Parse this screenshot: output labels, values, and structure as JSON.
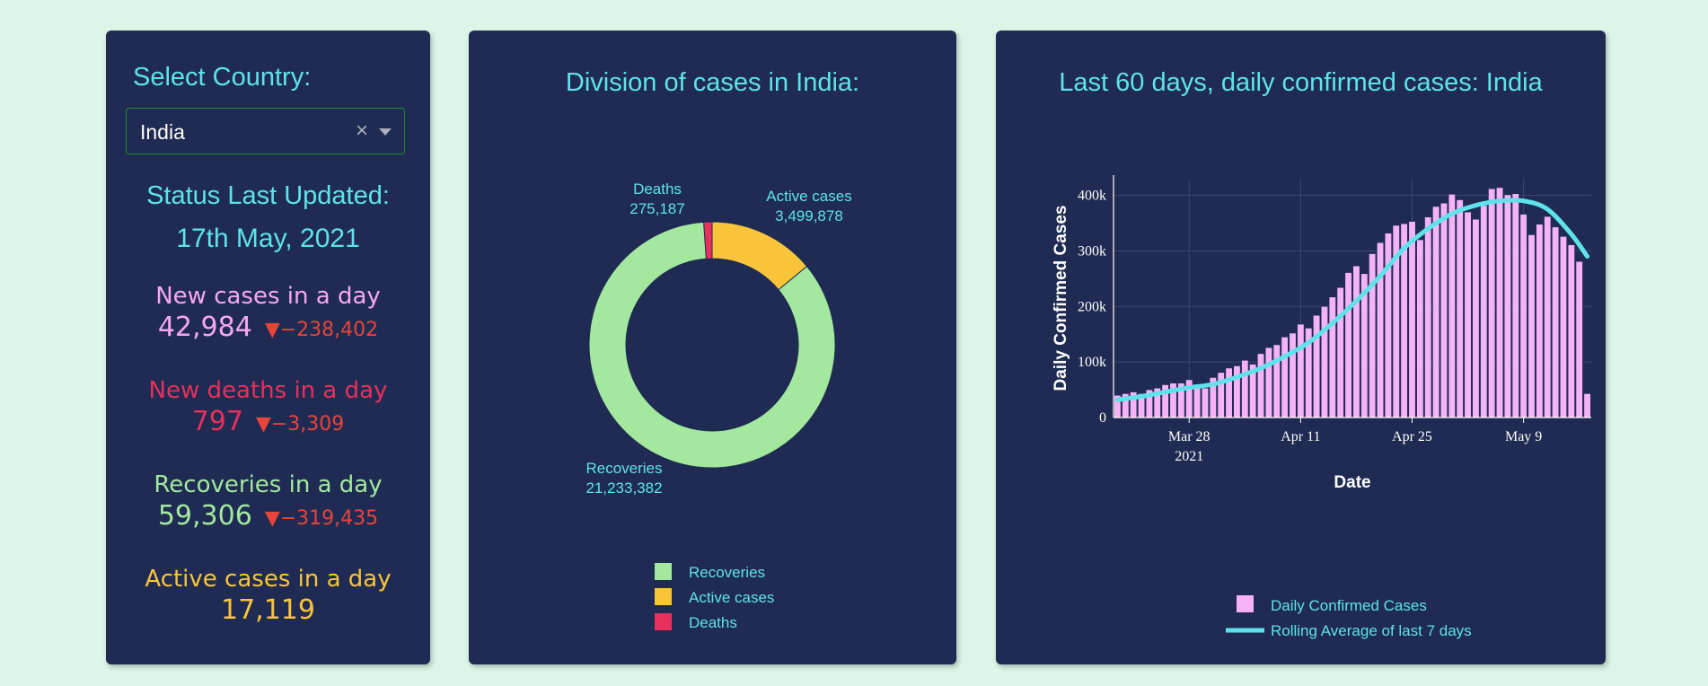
{
  "selector": {
    "label": "Select Country:",
    "value": "India",
    "clear_glyph": "×"
  },
  "status": {
    "label": "Status Last Updated:",
    "date": "17th May, 2021"
  },
  "stats": {
    "new_cases": {
      "label": "New cases in a day",
      "value": "42,984",
      "delta": "▼−238,402",
      "color": "#f5a8f0"
    },
    "new_deaths": {
      "label": "New deaths in a day",
      "value": "797",
      "delta": "▼−3,309",
      "color": "#e8305c"
    },
    "recoveries": {
      "label": "Recoveries in a day",
      "value": "59,306",
      "delta": "▼−319,435",
      "color": "#a3e89e"
    },
    "active": {
      "label": "Active cases in a day",
      "value": "17,119",
      "color": "#f8c53a"
    }
  },
  "colors": {
    "accent": "#5ee3ea",
    "card": "#1f2b52",
    "page": "#dcf5e8",
    "delta_down": "#e8443a"
  },
  "chart_data": [
    {
      "type": "pie",
      "title": "Division of cases in India:",
      "hole": true,
      "slices": [
        {
          "label": "Recoveries",
          "value": 21233382,
          "value_text": "21,233,382",
          "color": "#a3e89e"
        },
        {
          "label": "Active cases",
          "value": 3499878,
          "value_text": "3,499,878",
          "color": "#f8c53a"
        },
        {
          "label": "Deaths",
          "value": 275187,
          "value_text": "275,187",
          "color": "#e8305c"
        }
      ],
      "legend": [
        "Recoveries",
        "Active cases",
        "Deaths"
      ],
      "legend_position": "bottom-center"
    },
    {
      "type": "bar",
      "title": "Last 60 days, daily confirmed cases: India",
      "xlabel": "Date",
      "ylabel": "Daily Confirmed Cases",
      "ylim": [
        0,
        430000
      ],
      "y_ticks": [
        {
          "value": 0,
          "label": "0"
        },
        {
          "value": 100000,
          "label": "100k"
        },
        {
          "value": 200000,
          "label": "200k"
        },
        {
          "value": 300000,
          "label": "300k"
        },
        {
          "value": 400000,
          "label": "400k"
        }
      ],
      "x_ticks": [
        {
          "date": "2021-03-28",
          "label": "Mar 28",
          "sublabel": "2021"
        },
        {
          "date": "2021-04-11",
          "label": "Apr 11"
        },
        {
          "date": "2021-04-25",
          "label": "Apr 25"
        },
        {
          "date": "2021-05-09",
          "label": "May 9"
        }
      ],
      "grid": true,
      "legend_position": "bottom-center",
      "series": [
        {
          "name": "Daily Confirmed Cases",
          "kind": "bar",
          "color": "#f5b3f5",
          "x": [
            "2021-03-19",
            "2021-03-20",
            "2021-03-21",
            "2021-03-22",
            "2021-03-23",
            "2021-03-24",
            "2021-03-25",
            "2021-03-26",
            "2021-03-27",
            "2021-03-28",
            "2021-03-29",
            "2021-03-30",
            "2021-03-31",
            "2021-04-01",
            "2021-04-02",
            "2021-04-03",
            "2021-04-04",
            "2021-04-05",
            "2021-04-06",
            "2021-04-07",
            "2021-04-08",
            "2021-04-09",
            "2021-04-10",
            "2021-04-11",
            "2021-04-12",
            "2021-04-13",
            "2021-04-14",
            "2021-04-15",
            "2021-04-16",
            "2021-04-17",
            "2021-04-18",
            "2021-04-19",
            "2021-04-20",
            "2021-04-21",
            "2021-04-22",
            "2021-04-23",
            "2021-04-24",
            "2021-04-25",
            "2021-04-26",
            "2021-04-27",
            "2021-04-28",
            "2021-04-29",
            "2021-04-30",
            "2021-05-01",
            "2021-05-02",
            "2021-05-03",
            "2021-05-04",
            "2021-05-05",
            "2021-05-06",
            "2021-05-07",
            "2021-05-08",
            "2021-05-09",
            "2021-05-10",
            "2021-05-11",
            "2021-05-12",
            "2021-05-13",
            "2021-05-14",
            "2021-05-15",
            "2021-05-16",
            "2021-05-17"
          ],
          "y": [
            40000,
            43000,
            46000,
            43000,
            50000,
            53000,
            59000,
            62000,
            62000,
            68000,
            56000,
            53000,
            72000,
            81000,
            89000,
            93000,
            103000,
            96000,
            115000,
            126000,
            131000,
            145000,
            152000,
            168000,
            161000,
            184000,
            200000,
            217000,
            234000,
            261000,
            273000,
            259000,
            295000,
            315000,
            332000,
            346000,
            349000,
            353000,
            320000,
            361000,
            380000,
            386000,
            402000,
            392000,
            370000,
            357000,
            382000,
            412000,
            414000,
            401000,
            403000,
            366000,
            329000,
            348000,
            362000,
            343000,
            326000,
            311000,
            281000,
            43000
          ]
        },
        {
          "name": "Rolling Average of last 7 days",
          "kind": "line",
          "color": "#5ee3ea",
          "x": [
            "2021-03-19",
            "2021-03-22",
            "2021-03-25",
            "2021-03-28",
            "2021-03-31",
            "2021-04-03",
            "2021-04-06",
            "2021-04-09",
            "2021-04-12",
            "2021-04-15",
            "2021-04-18",
            "2021-04-21",
            "2021-04-24",
            "2021-04-27",
            "2021-04-30",
            "2021-05-03",
            "2021-05-06",
            "2021-05-09",
            "2021-05-12",
            "2021-05-15",
            "2021-05-17"
          ],
          "y": [
            32000,
            38000,
            46000,
            54000,
            60000,
            73000,
            89000,
            110000,
            135000,
            170000,
            210000,
            255000,
            305000,
            340000,
            367000,
            382000,
            390000,
            390000,
            375000,
            330000,
            290000
          ]
        }
      ]
    }
  ]
}
